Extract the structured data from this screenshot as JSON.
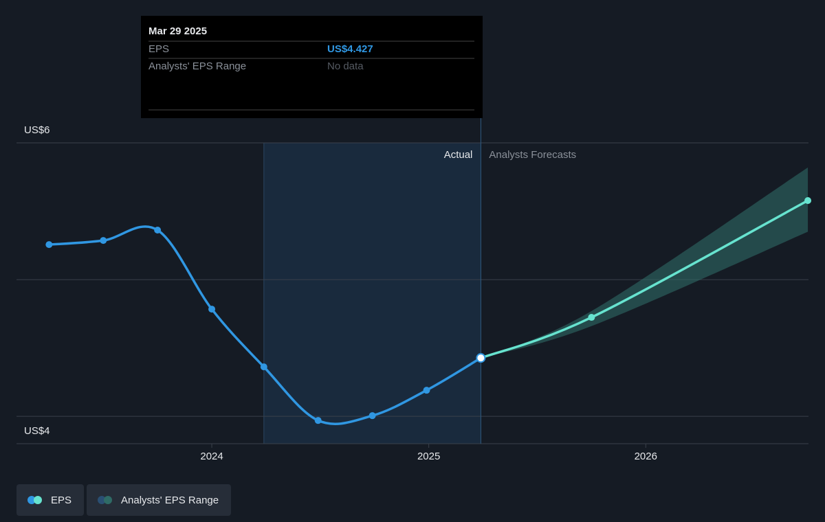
{
  "chart_data": {
    "type": "line",
    "xlim": [
      2023.1,
      2026.75
    ],
    "xticks": [
      2024,
      2025,
      2026
    ],
    "ylim": [
      3.8,
      6.0
    ],
    "yticks": [
      {
        "value": 4,
        "label": "US$4"
      },
      {
        "value": 6,
        "label": "US$6"
      }
    ],
    "grid_values": [
      4,
      5,
      6
    ],
    "highlight": [
      2024.24,
      2025.24
    ],
    "divider_x": 2025.24,
    "actual_label": "Actual",
    "forecast_label": "Analysts Forecasts",
    "series": [
      {
        "name": "EPS",
        "color": "#3097e2",
        "forecast_color": "#67e3cf",
        "x": [
          2023.25,
          2023.5,
          2023.75,
          2024.0,
          2024.24,
          2024.49,
          2024.74,
          2024.99,
          2025.24,
          2025.75,
          2026.747
        ],
        "values": [
          5.256,
          5.286,
          5.362,
          4.784,
          4.362,
          3.97,
          4.005,
          4.191,
          4.427,
          4.724,
          5.578
        ]
      },
      {
        "name": "Analysts' EPS Range",
        "color": "#2f6b66",
        "x": [
          2025.24,
          2025.75,
          2026.747
        ],
        "low": [
          4.427,
          4.66,
          5.35
        ],
        "high": [
          4.427,
          4.77,
          5.82
        ]
      }
    ],
    "tooltip": {
      "date": "Mar 29 2025",
      "rows": [
        [
          "EPS",
          "US$4.427"
        ],
        [
          "Analysts' EPS Range",
          "No data"
        ]
      ]
    }
  }
}
